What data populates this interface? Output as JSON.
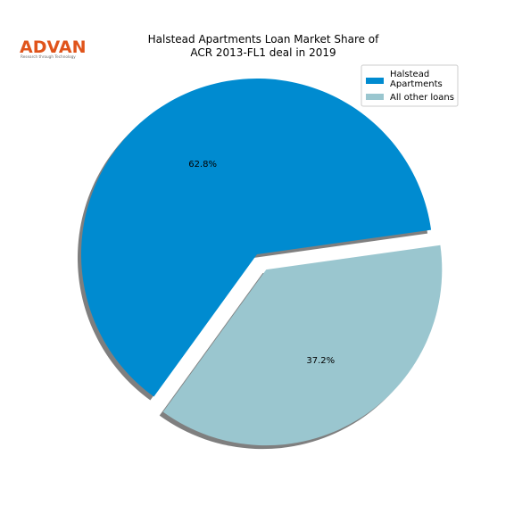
{
  "logo": {
    "word": "ADVAN",
    "tagline": "Research through Technology",
    "color": "#e0541b",
    "tag_color": "#6b6b6b"
  },
  "chart_data": {
    "type": "pie",
    "title": "Halstead Apartments Loan Market Share of ACR 2013-FL1 deal in 2019",
    "title_lines": [
      "Halstead Apartments Loan Market Share of",
      "ACR 2013-FL1 deal in 2019"
    ],
    "slices": [
      {
        "label_lines": [
          "Halstead",
          "Apartments"
        ],
        "value": 62.8,
        "pct_label": "62.8%",
        "color": "#008bd0",
        "exploded": false
      },
      {
        "label_lines": [
          "All other loans"
        ],
        "value": 37.2,
        "pct_label": "37.2%",
        "color": "#9ac6cf",
        "exploded": true
      }
    ],
    "start_angle_deg": 8,
    "shadow": true,
    "legend_position": "top-right"
  }
}
